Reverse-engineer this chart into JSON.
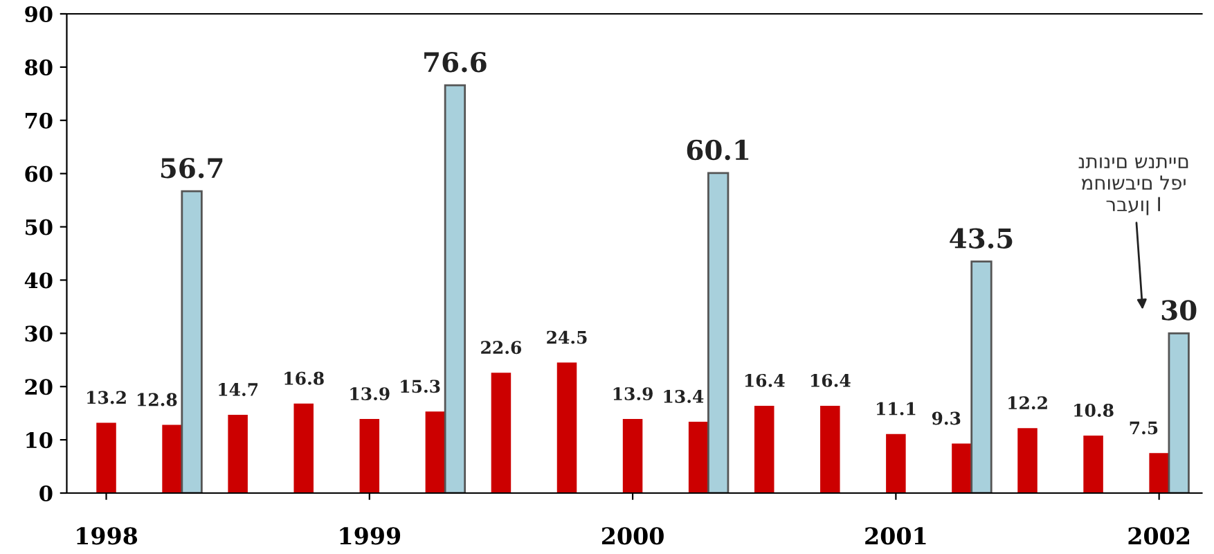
{
  "chart_data": {
    "type": "bar",
    "categories": [
      "1998",
      null,
      null,
      null,
      "1999",
      null,
      null,
      null,
      "2000",
      null,
      null,
      null,
      "2001",
      null,
      null,
      null,
      "2002"
    ],
    "series": [
      {
        "color": "#cc0000",
        "values": [
          13.2,
          12.8,
          14.7,
          16.8,
          13.9,
          15.3,
          22.6,
          24.5,
          13.9,
          13.4,
          16.4,
          16.4,
          11.1,
          9.3,
          12.2,
          10.8,
          7.5
        ]
      },
      {
        "color": "#a8d0dc",
        "values": [
          null,
          56.7,
          null,
          null,
          null,
          76.6,
          null,
          null,
          null,
          60.1,
          null,
          null,
          null,
          43.5,
          null,
          null,
          30
        ]
      }
    ],
    "ylim": [
      0,
      90
    ],
    "yticks": [
      0,
      10,
      20,
      30,
      40,
      50,
      60,
      70,
      80,
      90
    ],
    "data_labels": true,
    "grid": false,
    "legend": false,
    "annotations": [
      "נתונים שנתיים\nמחושבים לפי\nרבעון I"
    ]
  }
}
